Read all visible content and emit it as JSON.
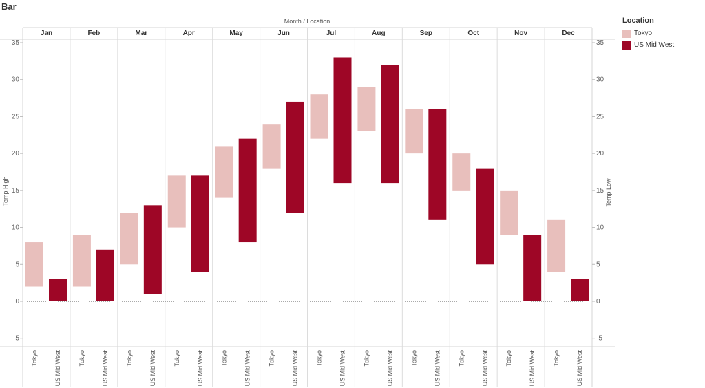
{
  "page": {
    "title": "Bar"
  },
  "chart_data": {
    "type": "bar",
    "subtype": "floating-range",
    "column_header_title": "Month  /  Location",
    "ylabel_left": "Temp High",
    "ylabel_right": "Temp Low",
    "ylim": [
      -7,
      36
    ],
    "yticks": [
      -5,
      0,
      5,
      10,
      15,
      20,
      25,
      30,
      35
    ],
    "zero_line": "dotted",
    "categories": [
      "Jan",
      "Feb",
      "Mar",
      "Apr",
      "May",
      "Jun",
      "Jul",
      "Aug",
      "Sep",
      "Oct",
      "Nov",
      "Dec"
    ],
    "series": [
      {
        "name": "Tokyo",
        "color": "#e8bfbc",
        "high": [
          8,
          9,
          12,
          17,
          21,
          24,
          28,
          29,
          26,
          20,
          15,
          11
        ],
        "low": [
          2,
          2,
          5,
          10,
          14,
          18,
          22,
          23,
          20,
          15,
          9,
          4
        ]
      },
      {
        "name": "US Mid West",
        "color": "#9e0626",
        "high": [
          3,
          7,
          13,
          17,
          22,
          27,
          33,
          32,
          26,
          18,
          9,
          3
        ],
        "low": [
          0,
          0,
          1,
          4,
          8,
          12,
          16,
          16,
          11,
          5,
          0,
          0
        ]
      }
    ],
    "legend": {
      "title": "Location",
      "position": "right"
    },
    "grid": "vertical-panel-lines"
  }
}
